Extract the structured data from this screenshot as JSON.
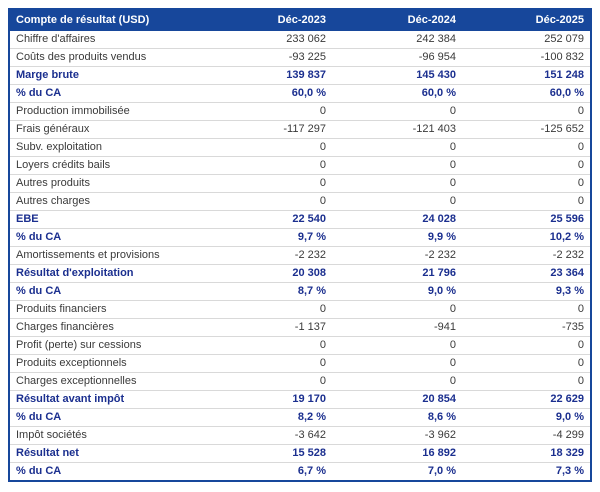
{
  "table": {
    "title": "Compte de résultat (USD)",
    "header": {
      "label": "Compte de résultat (USD)",
      "columns": [
        "Déc-2023",
        "Déc-2024",
        "Déc-2025"
      ]
    },
    "rows": [
      {
        "label": "Chiffre d'affaires",
        "values": [
          "233 062",
          "242 384",
          "252 079"
        ],
        "emph": false
      },
      {
        "label": "Coûts des produits vendus",
        "values": [
          "-93 225",
          "-96 954",
          "-100 832"
        ],
        "emph": false
      },
      {
        "label": "Marge brute",
        "values": [
          "139 837",
          "145 430",
          "151 248"
        ],
        "emph": true
      },
      {
        "label": "% du CA",
        "values": [
          "60,0 %",
          "60,0 %",
          "60,0 %"
        ],
        "emph": true
      },
      {
        "label": "Production immobilisée",
        "values": [
          "0",
          "0",
          "0"
        ],
        "emph": false
      },
      {
        "label": "Frais généraux",
        "values": [
          "-117 297",
          "-121 403",
          "-125 652"
        ],
        "emph": false
      },
      {
        "label": "Subv. exploitation",
        "values": [
          "0",
          "0",
          "0"
        ],
        "emph": false
      },
      {
        "label": "Loyers crédits bails",
        "values": [
          "0",
          "0",
          "0"
        ],
        "emph": false
      },
      {
        "label": "Autres produits",
        "values": [
          "0",
          "0",
          "0"
        ],
        "emph": false
      },
      {
        "label": "Autres charges",
        "values": [
          "0",
          "0",
          "0"
        ],
        "emph": false
      },
      {
        "label": "EBE",
        "values": [
          "22 540",
          "24 028",
          "25 596"
        ],
        "emph": true
      },
      {
        "label": "% du CA",
        "values": [
          "9,7 %",
          "9,9 %",
          "10,2 %"
        ],
        "emph": true
      },
      {
        "label": "Amortissements et provisions",
        "values": [
          "-2 232",
          "-2 232",
          "-2 232"
        ],
        "emph": false
      },
      {
        "label": "Résultat d'exploitation",
        "values": [
          "20 308",
          "21 796",
          "23 364"
        ],
        "emph": true
      },
      {
        "label": "% du CA",
        "values": [
          "8,7 %",
          "9,0 %",
          "9,3 %"
        ],
        "emph": true
      },
      {
        "label": "Produits financiers",
        "values": [
          "0",
          "0",
          "0"
        ],
        "emph": false
      },
      {
        "label": "Charges financières",
        "values": [
          "-1 137",
          "-941",
          "-735"
        ],
        "emph": false
      },
      {
        "label": "Profit (perte) sur cessions",
        "values": [
          "0",
          "0",
          "0"
        ],
        "emph": false
      },
      {
        "label": "Produits exceptionnels",
        "values": [
          "0",
          "0",
          "0"
        ],
        "emph": false
      },
      {
        "label": "Charges exceptionnelles",
        "values": [
          "0",
          "0",
          "0"
        ],
        "emph": false
      },
      {
        "label": "Résultat avant impôt",
        "values": [
          "19 170",
          "20 854",
          "22 629"
        ],
        "emph": true
      },
      {
        "label": "% du CA",
        "values": [
          "8,2 %",
          "8,6 %",
          "9,0 %"
        ],
        "emph": true
      },
      {
        "label": "Impôt sociétés",
        "values": [
          "-3 642",
          "-3 962",
          "-4 299"
        ],
        "emph": false
      },
      {
        "label": "Résultat net",
        "values": [
          "15 528",
          "16 892",
          "18 329"
        ],
        "emph": true
      },
      {
        "label": "% du CA",
        "values": [
          "6,7 %",
          "7,0 %",
          "7,3 %"
        ],
        "emph": true
      }
    ],
    "colors": {
      "header_bg": "#17479B",
      "header_text": "#FFFFFF",
      "emph_text": "#1B2F8F",
      "regular_text": "#3A3A3A",
      "border": "#17479B",
      "row_divider": "#D9D9D9",
      "page_bg": "#FFFFFF"
    }
  }
}
